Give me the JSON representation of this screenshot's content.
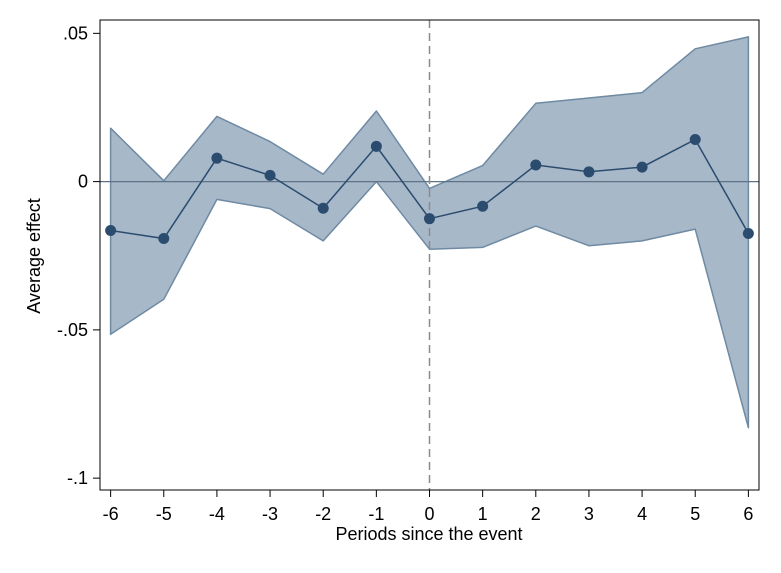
{
  "chart_data": {
    "type": "line",
    "title": "",
    "xlabel": "Periods since the event",
    "ylabel": "Average effect",
    "x": [
      -6,
      -5,
      -4,
      -3,
      -2,
      -1,
      0,
      1,
      2,
      3,
      4,
      5,
      6
    ],
    "series": [
      {
        "values": [
          -0.0165,
          -0.0192,
          0.0079,
          0.0021,
          -0.009,
          0.0119,
          -0.0125,
          -0.0083,
          0.0056,
          0.0033,
          0.0049,
          0.0142,
          -0.0175
        ],
        "ci_lower": [
          -0.0515,
          -0.0397,
          -0.006,
          -0.0091,
          -0.02,
          0.0,
          -0.0228,
          -0.0222,
          -0.015,
          -0.0216,
          -0.02,
          -0.016,
          -0.083
        ],
        "ci_upper": [
          0.018,
          0.0003,
          0.022,
          0.0135,
          0.0025,
          0.0238,
          -0.0023,
          0.0054,
          0.0264,
          0.0282,
          0.03,
          0.0448,
          0.0488
        ]
      }
    ],
    "xlim": [
      -6.2,
      6.2
    ],
    "ylim": [
      -0.104,
      0.0545
    ],
    "x_ticks": [
      -6,
      -5,
      -4,
      -3,
      -2,
      -1,
      0,
      1,
      2,
      3,
      4,
      5,
      6
    ],
    "x_tick_labels": [
      "-6",
      "-5",
      "-4",
      "-3",
      "-2",
      "-1",
      "0",
      "1",
      "2",
      "3",
      "4",
      "5",
      "6"
    ],
    "y_ticks": [
      0.05,
      0,
      -0.05,
      -0.1
    ],
    "y_tick_labels": [
      ".05",
      "0",
      "-.05",
      "-.1"
    ],
    "reference_lines": {
      "y": 0,
      "x": 0
    },
    "grid": false,
    "colors": {
      "line": "#2b4c6e",
      "marker": "#2b4c6e",
      "band_fill": "#a7b8c9",
      "band_edge": "#6f8aa3",
      "zero_line": "#5e7387",
      "event_line": "#8a8a8a",
      "frame": "#000000"
    }
  }
}
